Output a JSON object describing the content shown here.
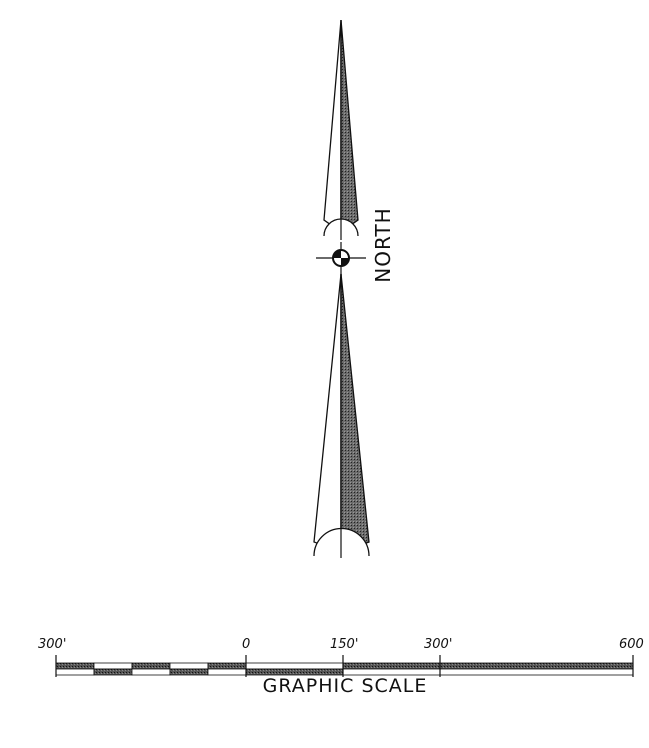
{
  "north_arrow": {
    "label": "NORTH"
  },
  "graphic_scale": {
    "title": "GRAPHIC SCALE",
    "tick_labels": [
      "300'",
      "0",
      "150'",
      "300'",
      "600"
    ]
  }
}
